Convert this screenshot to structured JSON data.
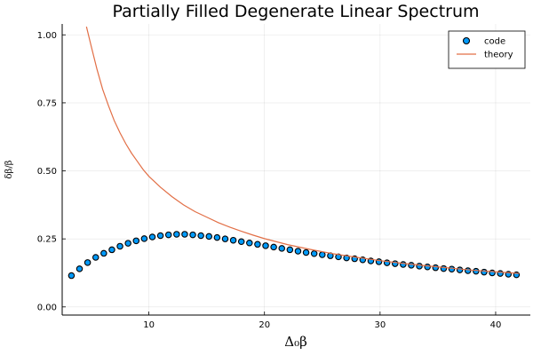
{
  "chart_data": {
    "type": "scatter",
    "title": "Partially Filled Degenerate Linear Spectrum",
    "xlabel": "Δ₀β",
    "ylabel": "δβ/β",
    "xlim": [
      2.5,
      43
    ],
    "ylim": [
      -0.03,
      1.04
    ],
    "xticks": [
      10,
      20,
      30,
      40
    ],
    "yticks": [
      0.0,
      0.25,
      0.5,
      0.75,
      1.0
    ],
    "ytick_labels": [
      "0.00",
      "0.25",
      "0.50",
      "0.75",
      "1.00"
    ],
    "grid": true,
    "legend": "top-right",
    "colors": {
      "code": "#009AFA",
      "theory": "#E26F46"
    },
    "series": [
      {
        "name": "code",
        "kind": "scatter",
        "x": [
          3.3,
          4.0,
          4.7,
          5.4,
          6.1,
          6.8,
          7.5,
          8.2,
          8.9,
          9.6,
          10.3,
          11.0,
          11.7,
          12.4,
          13.1,
          13.8,
          14.5,
          15.2,
          15.9,
          16.6,
          17.3,
          18.0,
          18.7,
          19.4,
          20.1,
          20.8,
          21.5,
          22.2,
          22.9,
          23.6,
          24.3,
          25.0,
          25.7,
          26.4,
          27.1,
          27.8,
          28.5,
          29.2,
          29.9,
          30.6,
          31.3,
          32.0,
          32.7,
          33.4,
          34.1,
          34.8,
          35.5,
          36.2,
          36.9,
          37.6,
          38.3,
          39.0,
          39.7,
          40.4,
          41.1,
          41.8
        ],
        "y": [
          0.115,
          0.14,
          0.163,
          0.182,
          0.197,
          0.21,
          0.223,
          0.234,
          0.243,
          0.251,
          0.257,
          0.262,
          0.265,
          0.267,
          0.267,
          0.265,
          0.262,
          0.259,
          0.255,
          0.25,
          0.245,
          0.24,
          0.235,
          0.23,
          0.225,
          0.22,
          0.215,
          0.21,
          0.205,
          0.2,
          0.196,
          0.192,
          0.188,
          0.184,
          0.18,
          0.177,
          0.173,
          0.169,
          0.166,
          0.162,
          0.159,
          0.156,
          0.153,
          0.15,
          0.147,
          0.144,
          0.141,
          0.139,
          0.136,
          0.133,
          0.131,
          0.128,
          0.125,
          0.123,
          0.12,
          0.118
        ]
      },
      {
        "name": "theory",
        "kind": "line",
        "x": [
          4.6,
          5.0,
          5.5,
          6.0,
          6.5,
          7.0,
          7.5,
          8.0,
          8.5,
          9.0,
          9.5,
          10.0,
          11.0,
          12.0,
          13.0,
          14.0,
          15.0,
          16.0,
          17.0,
          18.0,
          19.0,
          20.0,
          22.0,
          24.0,
          26.0,
          28.0,
          30.0,
          32.0,
          34.0,
          36.0,
          38.0,
          40.0,
          42.0
        ],
        "y": [
          1.03,
          0.96,
          0.875,
          0.8,
          0.74,
          0.685,
          0.64,
          0.6,
          0.565,
          0.535,
          0.505,
          0.48,
          0.44,
          0.405,
          0.375,
          0.35,
          0.33,
          0.31,
          0.293,
          0.278,
          0.264,
          0.251,
          0.229,
          0.211,
          0.195,
          0.182,
          0.17,
          0.16,
          0.151,
          0.143,
          0.135,
          0.129,
          0.123
        ]
      }
    ]
  }
}
